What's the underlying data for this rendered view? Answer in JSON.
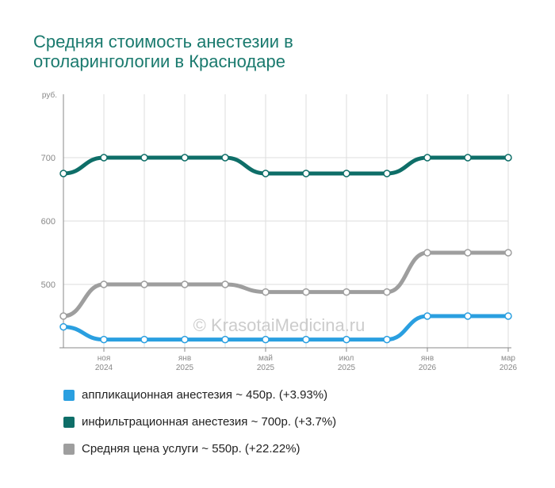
{
  "chart_data": {
    "type": "line",
    "title": "Средняя стоимость анестезии в отоларингологии в Краснодаре",
    "ylabel": "руб.",
    "ylim": [
      400,
      800
    ],
    "yticks": [
      500,
      600,
      700
    ],
    "watermark": "© KrasotaiMedicina.ru",
    "xticks": [
      {
        "i": 1,
        "m": "ноя",
        "y": "2024"
      },
      {
        "i": 3,
        "m": "янв",
        "y": "2025"
      },
      {
        "i": 5,
        "m": "май",
        "y": "2025"
      },
      {
        "i": 7,
        "m": "июл",
        "y": "2025"
      },
      {
        "i": 9,
        "m": "янв",
        "y": "2026"
      },
      {
        "i": 11,
        "m": "мар",
        "y": "2026"
      }
    ],
    "series": [
      {
        "name": "аппликационная анестезия ~ 450р. (+3.93%)",
        "color": "#2a9fe0",
        "values": [
          433,
          413,
          413,
          413,
          413,
          413,
          413,
          413,
          413,
          450,
          450,
          450
        ]
      },
      {
        "name": "инфильтрационная анестезия ~ 700р. (+3.7%)",
        "color": "#0e6e68",
        "values": [
          675,
          700,
          700,
          700,
          700,
          675,
          675,
          675,
          675,
          700,
          700,
          700
        ]
      },
      {
        "name": "Средняя цена услуги ~ 550р. (+22.22%)",
        "color": "#9e9e9e",
        "values": [
          450,
          500,
          500,
          500,
          500,
          488,
          488,
          488,
          488,
          550,
          550,
          550
        ]
      }
    ]
  }
}
